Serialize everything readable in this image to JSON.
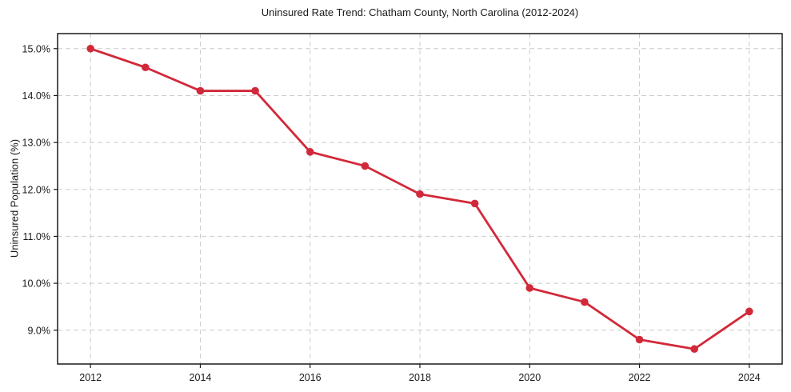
{
  "title": "Uninsured Rate Trend: Chatham County, North Carolina (2012-2024)",
  "colors": {
    "background": "#ffffff",
    "line": "#d2293a",
    "marker": "#d2293a",
    "grid": "#cccccc",
    "spine": "#1a1a1a",
    "text": "#1a1a1a"
  },
  "chart_data": {
    "type": "line",
    "title": "Uninsured Rate Trend: Chatham County, North Carolina (2012-2024)",
    "xlabel": "",
    "ylabel": "Uninsured Population (%)",
    "x": [
      2012,
      2013,
      2014,
      2015,
      2016,
      2017,
      2018,
      2019,
      2020,
      2021,
      2022,
      2023,
      2024
    ],
    "series": [
      {
        "name": "Uninsured Population (%)",
        "values": [
          15.0,
          14.6,
          14.1,
          14.1,
          12.8,
          12.5,
          11.9,
          11.7,
          9.9,
          9.6,
          8.8,
          8.6,
          9.4
        ]
      }
    ],
    "xlim": [
      2011.4,
      2024.6
    ],
    "ylim": [
      8.28,
      15.32
    ],
    "xticks": [
      2012,
      2014,
      2016,
      2018,
      2020,
      2022,
      2024
    ],
    "yticks": [
      9.0,
      10.0,
      11.0,
      12.0,
      13.0,
      14.0,
      15.0
    ],
    "ytick_suffix": "%",
    "grid": true,
    "grid_style": "dashed",
    "legend_position": "none",
    "marker": "circle"
  }
}
